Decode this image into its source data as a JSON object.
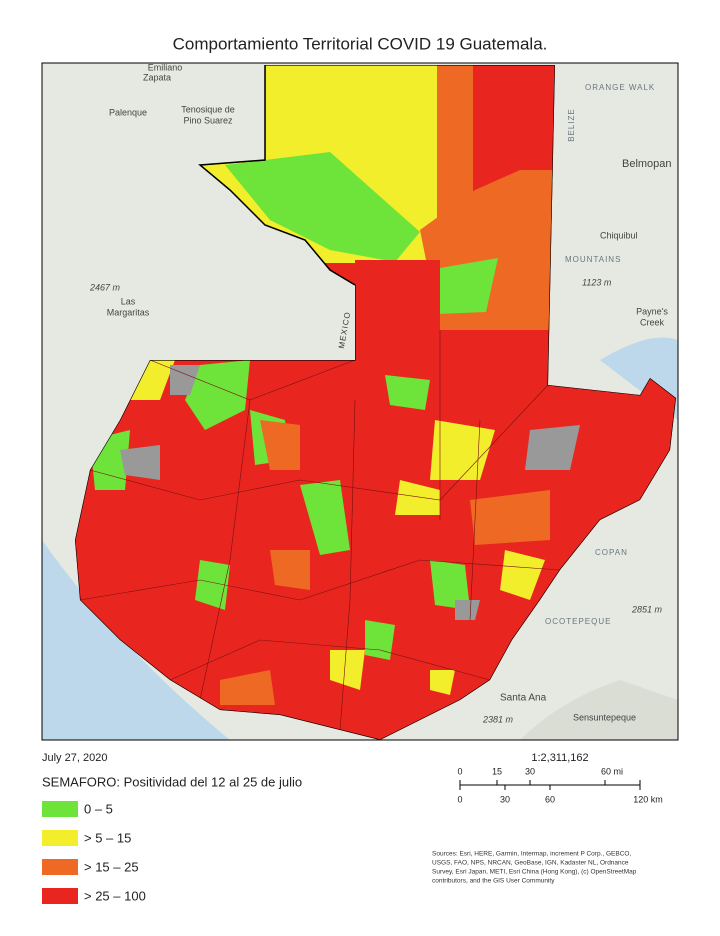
{
  "title": "Comportamiento Territorial COVID 19 Guatemala.",
  "date": "July 27, 2020",
  "scale": "1:2,311,162",
  "scale_bar": {
    "miles": [
      "0",
      "15",
      "30",
      "60 mi"
    ],
    "km": [
      "0",
      "30",
      "60",
      "120 km"
    ]
  },
  "legend": {
    "title": "SEMAFORO: Positividad del 12 al 25 de julio",
    "items": [
      {
        "label": "0 – 5",
        "color": "#6ee33a"
      },
      {
        "label": "> 5 – 15",
        "color": "#f2ee2c"
      },
      {
        "label": "> 15 – 25",
        "color": "#ee6a24"
      },
      {
        "label": "> 25 – 100",
        "color": "#e8261f"
      }
    ]
  },
  "sources": [
    "Sources: Esri, HERE, Garmin, Intermap, increment P Corp., GEBCO,",
    "USGS, FAO, NPS, NRCAN, GeoBase, IGN, Kadaster NL, Ordnance",
    "Survey, Esri Japan, METI, Esri China (Hong Kong), (c) OpenStreetMap",
    "contributors, and the GIS User Community"
  ],
  "map_labels": [
    "Emiliano",
    "Zapata",
    "Palenque",
    "Tenosique de",
    "Pino Suarez",
    "Belmopan",
    "BELIZE",
    "MEXICO",
    "Las",
    "Margaritas",
    "2467 m",
    "Chiquibul",
    "1123 m",
    "Payne's",
    "Creek",
    "COPAN",
    "OCOTEPEQUE",
    "2851 m",
    "Santa Ana",
    "Sensuntepeque",
    "2381 m",
    "ORANGE WALK",
    "MOUNTAINS"
  ]
}
